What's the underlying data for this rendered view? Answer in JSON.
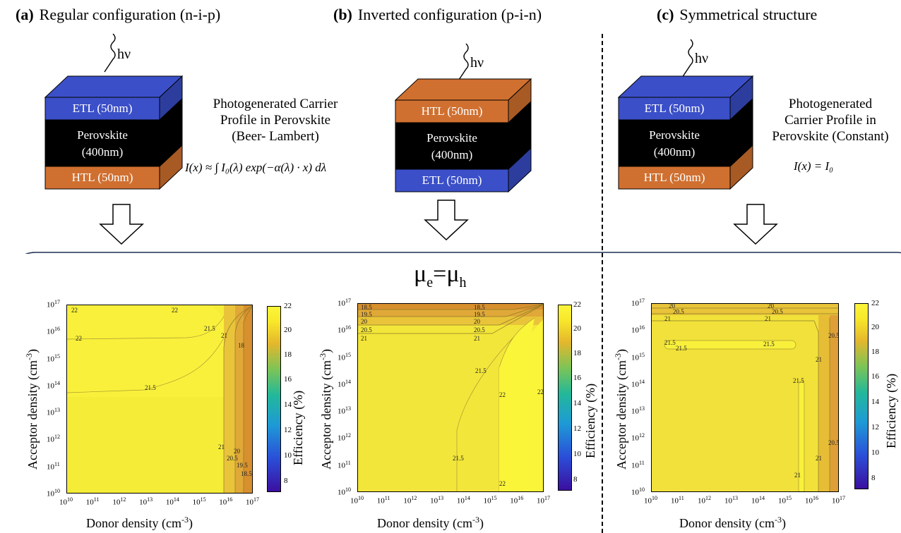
{
  "panels": [
    {
      "letter": "(a)",
      "title": "Regular configuration (n-i-p)",
      "hv": "hν",
      "layers": [
        "ETL (50nm)",
        "Perovskite",
        "(400nm)",
        "HTL (50nm)"
      ]
    },
    {
      "letter": "(b)",
      "title": "Inverted configuration (p-i-n)",
      "hv": "hν",
      "layers": [
        "HTL (50nm)",
        "Perovskite",
        "(400nm)",
        "ETL (50nm)"
      ]
    },
    {
      "letter": "(c)",
      "title": "Symmetrical structure",
      "hv": "hν",
      "layers": [
        "ETL (50nm)",
        "Perovskite",
        "(400nm)",
        "HTL (50nm)"
      ]
    }
  ],
  "desc_ab": [
    "Photogenerated Carrier",
    "Profile in Perovskite",
    "(Beer- Lambert)"
  ],
  "formula_ab": "I(x) ≈ ∫ I₀(λ) exp(−α(λ) · x)  dλ",
  "desc_c": [
    "Photogenerated",
    "Carrier Profile in",
    "Perovskite (Constant)"
  ],
  "formula_c": "I(x) = I₀",
  "mobility_label": "μe=μh",
  "mobility_parts": {
    "mu1": "μ",
    "sub1": "e",
    "eq": "=",
    "mu2": "μ",
    "sub2": "h"
  },
  "axes": {
    "x_title": "Donor density (cm",
    "y_title": "Acceptor density (cm",
    "unit_exp": "-3",
    "close": ")",
    "cbar_title": "Efficiency (%)",
    "tick_base": "10",
    "tick_exps": [
      "10",
      "11",
      "12",
      "13",
      "14",
      "15",
      "16",
      "17"
    ]
  },
  "cbar_ticks_ab": [
    "22",
    "20",
    "18",
    "16",
    "14",
    "12",
    "10",
    "8"
  ],
  "cbar_ticks_c": [
    "22",
    "20",
    "18",
    "16",
    "14",
    "12",
    "10",
    "8"
  ],
  "colors": {
    "etl": "#3b4fc8",
    "etl_side": "#2d3d9e",
    "htl": "#d07030",
    "htl_side": "#a85a24",
    "perovskite": "#000000",
    "field": "#f3e63a",
    "border": "#1f2f55"
  },
  "contours_a": [
    "22",
    "22",
    "22",
    "21.5",
    "21.5",
    "21",
    "21",
    "20.5",
    "20",
    "19.5",
    "18.5",
    "18"
  ],
  "contours_b": [
    "18.5",
    "19.5",
    "20",
    "20.5",
    "21",
    "18.5",
    "19.5",
    "20",
    "20.5",
    "21",
    "21.5",
    "22",
    "22",
    "22",
    "21.5"
  ],
  "contours_c": [
    "20",
    "20.5",
    "21",
    "20",
    "20.5",
    "21",
    "21.5",
    "21.5",
    "21.5",
    "21.5",
    "21",
    "20.5",
    "21",
    "20.5",
    "21"
  ]
}
